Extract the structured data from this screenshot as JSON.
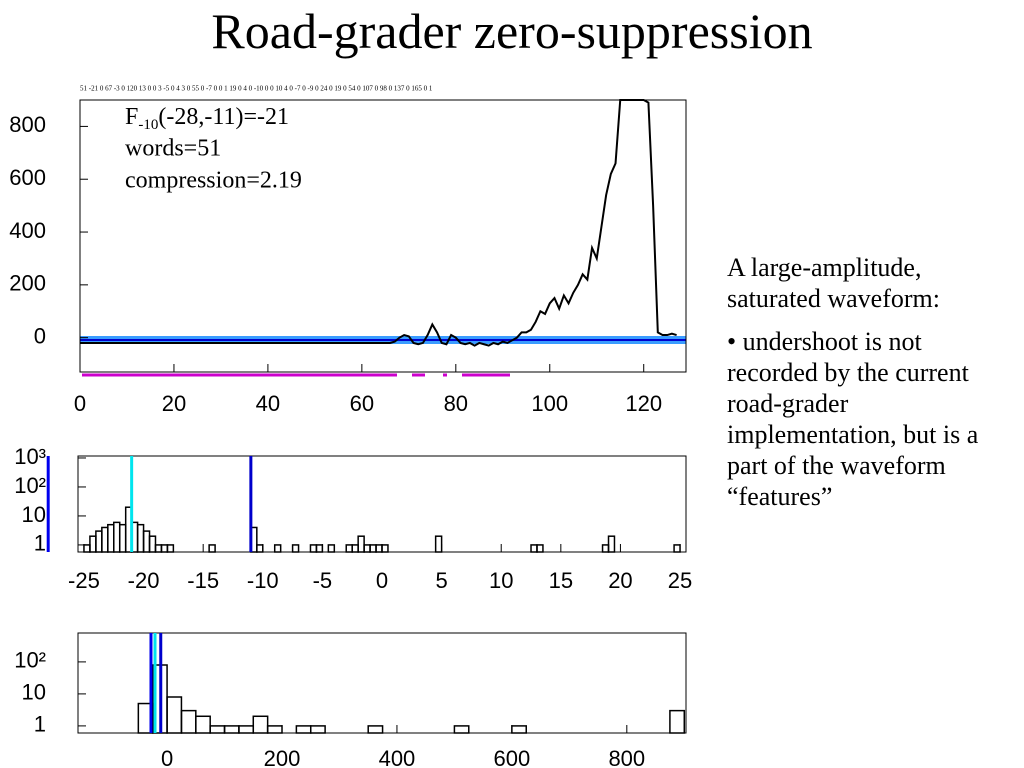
{
  "title": "Road-grader zero-suppression",
  "side_text": [
    "A large-amplitude, saturated waveform:",
    "• undershoot is not recorded by the current road-grader implementation, but is a part of the waveform “features”"
  ],
  "chart_data": [
    {
      "type": "line",
      "annotations": [
        "51 -21 0 67 -3 0 120 13 0 0 3 -5 0 4 3 0 55 0 -7 0 0 1 19 0 4 0 -10 0 0 10 4 0 -7 0 -9 0 24 0 19 0 54 0 107 0 98 0 137 0 165 0 1",
        "F",
        "-10",
        "(-28,-11)=-21",
        "words=51",
        "compression=2.19"
      ],
      "x": [
        0,
        1,
        2,
        3,
        4,
        5,
        6,
        7,
        8,
        9,
        10,
        11,
        12,
        13,
        14,
        15,
        16,
        17,
        18,
        19,
        20,
        21,
        22,
        23,
        24,
        25,
        26,
        27,
        28,
        29,
        30,
        31,
        32,
        33,
        34,
        35,
        36,
        37,
        38,
        39,
        40,
        41,
        42,
        43,
        44,
        45,
        46,
        47,
        48,
        49,
        50,
        51,
        52,
        53,
        54,
        55,
        56,
        57,
        58,
        59,
        60,
        61,
        62,
        63,
        64,
        65,
        66,
        67,
        68,
        69,
        70,
        71,
        72,
        73,
        74,
        75,
        76,
        77,
        78,
        79,
        80,
        81,
        82,
        83,
        84,
        85,
        86,
        87,
        88,
        89,
        90,
        91,
        92,
        93,
        94,
        95,
        96,
        97,
        98,
        99,
        100,
        101,
        102,
        103,
        104,
        105,
        106,
        107,
        108,
        109,
        110,
        111,
        112,
        113,
        114,
        115,
        116,
        117,
        118,
        119,
        120,
        121,
        122,
        123,
        124,
        125,
        126,
        127
      ],
      "series": [
        {
          "color": "#000000",
          "values": [
            -20,
            -20,
            -20,
            -20,
            -20,
            -20,
            -20,
            -20,
            -20,
            -20,
            -20,
            -20,
            -20,
            -20,
            -20,
            -20,
            -20,
            -20,
            -20,
            -20,
            -20,
            -20,
            -20,
            -20,
            -20,
            -20,
            -20,
            -20,
            -20,
            -20,
            -20,
            -20,
            -20,
            -20,
            -20,
            -20,
            -20,
            -20,
            -20,
            -20,
            -20,
            -20,
            -20,
            -20,
            -20,
            -20,
            -20,
            -20,
            -20,
            -20,
            -20,
            -20,
            -20,
            -20,
            -20,
            -20,
            -20,
            -20,
            -20,
            -20,
            -20,
            -20,
            -20,
            -20,
            -20,
            -20,
            -20,
            -15,
            0,
            10,
            5,
            -20,
            -25,
            -20,
            10,
            50,
            20,
            -20,
            -25,
            10,
            0,
            -20,
            -25,
            -20,
            -30,
            -20,
            -25,
            -30,
            -20,
            -25,
            -15,
            -20,
            -10,
            0,
            20,
            20,
            30,
            60,
            100,
            90,
            130,
            150,
            110,
            160,
            130,
            170,
            200,
            240,
            220,
            340,
            300,
            420,
            540,
            620,
            660,
            900,
            900,
            900,
            900,
            900,
            900,
            890,
            500,
            20,
            10,
            10,
            15,
            10
          ]
        }
      ],
      "xlim": [
        0,
        129
      ],
      "xticks": [
        0,
        20,
        40,
        60,
        80,
        100,
        120
      ],
      "ylim": [
        -130,
        900
      ],
      "yticks": [
        0,
        200,
        400,
        600,
        800
      ]
    },
    {
      "type": "histogram",
      "log_y": true,
      "color": "#000000",
      "bins": [
        -25,
        -24.5,
        -24,
        -23.5,
        -23,
        -22.5,
        -22,
        -21.5,
        -21,
        -20.5,
        -20,
        -19.5,
        -19,
        -18.5,
        -18,
        -17.5,
        -17,
        -16.5,
        -16,
        -15.5,
        -15,
        -14.5,
        -14,
        -13.5,
        -13,
        -12.5,
        -12,
        -11.5,
        -11,
        -10.5,
        -10,
        -9.5,
        -9,
        -8.5,
        -8,
        -7.5,
        -7,
        -6.5,
        -6,
        -5.5,
        -5,
        -4.5,
        -4,
        -3.5,
        -3,
        -2.5,
        -2,
        -1.5,
        -1,
        -0.5,
        0,
        0.5,
        1,
        1.5,
        2,
        2.5,
        3,
        3.5,
        4,
        4.5,
        5,
        5.5,
        6,
        6.5,
        7,
        7.5,
        8,
        8.5,
        9,
        9.5,
        10,
        10.5,
        11,
        11.5,
        12,
        12.5,
        13,
        13.5,
        14,
        14.5,
        15,
        15.5,
        16,
        16.5,
        17,
        17.5,
        18,
        18.5,
        19,
        19.5,
        20,
        20.5,
        21,
        21.5,
        22,
        22.5,
        23,
        23.5,
        24,
        24.5,
        25
      ],
      "values": [
        1,
        2,
        3,
        4,
        5,
        6,
        5,
        20,
        6,
        5,
        3,
        2,
        1,
        1,
        1,
        0,
        0,
        0,
        0,
        0,
        0,
        1,
        0,
        0,
        0,
        0,
        0,
        0,
        4,
        1,
        0,
        0,
        1,
        0,
        0,
        1,
        0,
        0,
        1,
        1,
        0,
        1,
        0,
        0,
        1,
        1,
        2,
        1,
        1,
        1,
        1,
        0,
        0,
        0,
        0,
        0,
        0,
        0,
        0,
        2,
        0,
        0,
        0,
        0,
        0,
        0,
        0,
        0,
        0,
        0,
        0,
        0,
        0,
        0,
        0,
        1,
        1,
        0,
        0,
        0,
        0,
        0,
        0,
        0,
        0,
        0,
        0,
        1,
        2,
        0,
        0,
        0,
        0,
        0,
        0,
        0,
        0,
        0,
        0,
        1
      ],
      "vlines": [
        {
          "value": -28,
          "color": "#0000ee"
        },
        {
          "value": -21,
          "color": "#00e5ee"
        },
        {
          "value": -11,
          "color": "#0000cc"
        }
      ],
      "xlim": [
        -25.5,
        25.5
      ],
      "xticks": [
        -25,
        -20,
        -15,
        -10,
        -5,
        0,
        5,
        10,
        15,
        20,
        25
      ],
      "ylim": [
        0.57,
        1170
      ],
      "yticks": [
        1,
        10,
        {
          "value": 100,
          "label": "10²"
        },
        {
          "value": 1000,
          "label": "10³"
        }
      ]
    },
    {
      "type": "histogram",
      "log_y": true,
      "color": "#000000",
      "bins": [
        -150,
        -125,
        -100,
        -75,
        -50,
        -25,
        0,
        25,
        50,
        75,
        100,
        125,
        150,
        175,
        200,
        225,
        250,
        275,
        300,
        325,
        350,
        375,
        400,
        425,
        450,
        475,
        500,
        525,
        550,
        575,
        600,
        625,
        650,
        675,
        700,
        725,
        750,
        775,
        800,
        825,
        850,
        875,
        900
      ],
      "values": [
        0,
        0,
        0,
        0,
        5,
        80,
        8,
        3,
        2,
        1,
        1,
        1,
        2,
        1,
        0,
        1,
        1,
        0,
        0,
        0,
        1,
        0,
        0,
        0,
        0,
        0,
        1,
        0,
        0,
        0,
        1,
        0,
        0,
        0,
        0,
        0,
        0,
        0,
        0,
        0,
        0,
        3
      ],
      "vlines": [
        {
          "value": -28,
          "color": "#0000ee"
        },
        {
          "value": -21,
          "color": "#00e5ee"
        },
        {
          "value": -11,
          "color": "#0000cc"
        }
      ],
      "xlim": [
        -155,
        903
      ],
      "xticks": [
        0,
        200,
        400,
        600,
        800
      ],
      "ylim": [
        0.6,
        800
      ],
      "yticks": [
        1,
        10,
        {
          "value": 100,
          "label": "10²"
        }
      ]
    }
  ]
}
